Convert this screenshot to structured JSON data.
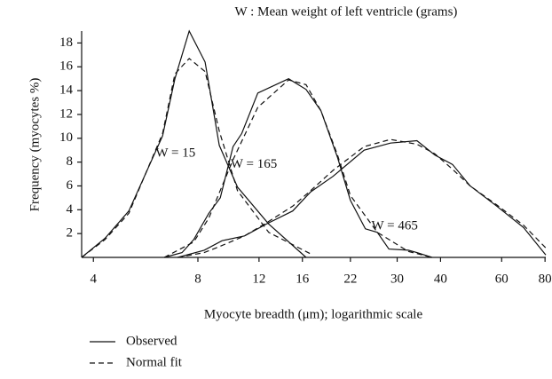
{
  "chart_data": {
    "type": "line",
    "title": "W : Mean weight of left ventricle (grams)",
    "x_label": "Myocyte breadth (μm); logarithmic scale",
    "y_label": "Frequency (myocytes %)",
    "log_x": true,
    "xlim": [
      3.7,
      80.4
    ],
    "xticks": [
      4,
      8,
      12,
      16,
      22,
      30,
      40,
      60,
      80
    ],
    "ylim": [
      0,
      19
    ],
    "yticks": [
      2,
      4,
      6,
      8,
      10,
      12,
      14,
      16,
      18
    ],
    "series": [
      {
        "name": "Observed",
        "color": "#111111",
        "style": "solid",
        "x": [
          3.7,
          4.32,
          5.06,
          6.33,
          6.87,
          7.55,
          8.39,
          9.22,
          10.4,
          12.8,
          16.4
        ],
        "values": [
          0,
          1.6,
          3.9,
          10.2,
          15,
          19,
          16.4,
          9.4,
          5.9,
          2.8,
          0
        ]
      },
      {
        "name": "Normal fit",
        "color": "#111111",
        "style": "dashed",
        "x": [
          3.7,
          4.32,
          5.06,
          6.33,
          6.87,
          7.55,
          8.39,
          9.22,
          10.4,
          12.8,
          16.9
        ],
        "values": [
          0,
          1.5,
          3.7,
          10.4,
          15.4,
          16.7,
          15.6,
          10.6,
          5.6,
          2.1,
          0.3
        ]
      },
      {
        "color": "#111111",
        "style": "solid",
        "x": [
          6.4,
          7.2,
          7.78,
          8.6,
          9.28,
          10.1,
          10.7,
          11.9,
          14.6,
          16.4,
          18.1,
          20.2,
          22.0,
          24.3,
          26.3,
          28.4,
          32.3,
          34.2,
          37.8
        ],
        "values": [
          0,
          0.4,
          1.5,
          3.7,
          5.0,
          9.3,
          10.4,
          13.8,
          15,
          14.1,
          12.3,
          8.4,
          4.8,
          2.4,
          2.1,
          0.7,
          0.6,
          0.4,
          0
        ]
      },
      {
        "color": "#111111",
        "style": "dashed",
        "x": [
          6.4,
          7.78,
          8.6,
          10.1,
          11.9,
          14.6,
          16.4,
          18.1,
          20.2,
          22.0,
          26.3,
          32.3,
          37.8
        ],
        "values": [
          0,
          1.3,
          3.3,
          8.2,
          12.6,
          14.9,
          14.5,
          12.3,
          8.6,
          5.2,
          2.1,
          0.5,
          0
        ]
      },
      {
        "color": "#111111",
        "style": "solid",
        "x": [
          7.0,
          8.34,
          9.39,
          10.9,
          12.6,
          15.0,
          16.9,
          19.6,
          24.1,
          28.7,
          34.2,
          38.5,
          43.3,
          48.7,
          58.1,
          69.4,
          80.4
        ],
        "values": [
          0,
          0.6,
          1.4,
          1.8,
          2.8,
          3.9,
          5.5,
          6.8,
          9,
          9.6,
          9.8,
          8.6,
          7.8,
          6,
          4.3,
          2.5,
          0.2
        ]
      },
      {
        "color": "#111111",
        "style": "dashed",
        "x": [
          7.0,
          8.34,
          9.39,
          10.9,
          12.6,
          15.0,
          16.9,
          19.6,
          24.1,
          28.7,
          34.2,
          38.5,
          43.3,
          48.7,
          58.1,
          69.4,
          80.4
        ],
        "values": [
          0,
          0.4,
          1.0,
          1.8,
          2.9,
          4.3,
          5.6,
          7.3,
          9.3,
          9.9,
          9.5,
          8.7,
          7.4,
          6,
          4.4,
          2.7,
          0.8
        ]
      }
    ],
    "annotations": [
      {
        "text": "W = 15",
        "x": 6.9,
        "y": 8.7
      },
      {
        "text": "W = 165",
        "x": 11.6,
        "y": 7.8
      },
      {
        "text": "W = 465",
        "x": 29.5,
        "y": 2.6
      }
    ]
  }
}
